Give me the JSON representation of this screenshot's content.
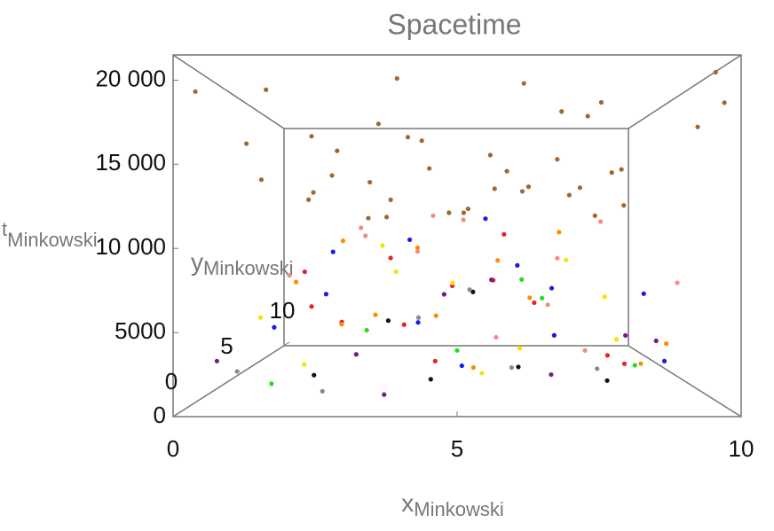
{
  "chart_data": {
    "type": "scatter3d",
    "title": "Spacetime",
    "xlabel": {
      "main": "x",
      "sub": "Minkowski"
    },
    "ylabel": {
      "main": "y",
      "sub": "Minkowski"
    },
    "tlabel": {
      "main": "t",
      "sub": "Minkowski"
    },
    "xlim": [
      0,
      10
    ],
    "ylim": [
      0,
      10
    ],
    "tlim": [
      0,
      21500
    ],
    "xticks": [
      0,
      5,
      10
    ],
    "yticks": [
      0,
      5,
      10
    ],
    "tticks": [
      0,
      5000,
      {
        "value": 10000,
        "label": "10 000"
      },
      {
        "value": 15000,
        "label": "15 000"
      },
      {
        "value": 20000,
        "label": "20 000"
      }
    ],
    "series": [
      {
        "color": "#a0672e",
        "x": [
          0.3,
          1.2,
          2.1,
          3.0,
          3.9,
          4.8,
          5.7,
          6.6,
          7.5,
          8.4,
          9.3,
          9.9,
          0.8,
          1.7,
          2.6,
          3.5,
          4.4,
          5.3,
          6.2,
          7.1,
          8.0,
          8.9,
          9.6,
          0.5,
          1.5,
          2.5,
          3.4,
          4.3,
          5.2,
          6.1,
          7.0,
          7.9,
          8.8,
          9.7,
          2.2,
          4.0,
          5.9,
          7.7,
          3.1,
          6.8
        ],
        "y": [
          0.5,
          8,
          3,
          6,
          1,
          9,
          4,
          7,
          2,
          5,
          8,
          1,
          3,
          6,
          9,
          2,
          5,
          8,
          0.5,
          4,
          7,
          9.5,
          2,
          6,
          1,
          4,
          7,
          3,
          9,
          5,
          2,
          8,
          6,
          0.8,
          5.5,
          3.5,
          6.5,
          1.5,
          9,
          7.5
        ],
        "t": [
          19500,
          14000,
          17500,
          15000,
          20500,
          13000,
          16500,
          14500,
          18500,
          15500,
          13500,
          19000,
          17000,
          14200,
          12500,
          18000,
          15800,
          13200,
          20000,
          16200,
          14800,
          12800,
          17800,
          15200,
          19800,
          16800,
          13800,
          17200,
          13000,
          15600,
          18800,
          14400,
          16000,
          20800,
          15400,
          17600,
          14600,
          19200,
          12600,
          15000
        ]
      },
      {
        "color": "#e8202a",
        "x": [
          2.1,
          3.4,
          4.6,
          5.8,
          7.0,
          8.2,
          1.5,
          3.9,
          6.3,
          7.7,
          4.9,
          2.8
        ],
        "y": [
          3,
          7,
          1,
          5,
          8,
          2,
          6,
          4,
          9,
          0.5,
          6.5,
          2
        ],
        "t": [
          6000,
          9000,
          3000,
          7500,
          5000,
          2500,
          8000,
          4500,
          11000,
          3500,
          6800,
          5200
        ]
      },
      {
        "color": "#1a1ae6",
        "x": [
          1.0,
          2.5,
          3.8,
          5.1,
          6.4,
          7.6,
          8.8,
          4.3,
          5.6,
          2.0,
          6.9,
          9.1
        ],
        "y": [
          5,
          2,
          8,
          3,
          6,
          9,
          1,
          0.5,
          4,
          7,
          2.5,
          5
        ],
        "t": [
          4000,
          7000,
          10500,
          2000,
          8500,
          6000,
          3000,
          5500,
          12000,
          9500,
          4200,
          6500
        ]
      },
      {
        "color": "#f2e600",
        "x": [
          0.9,
          2.2,
          3.6,
          4.9,
          6.2,
          7.4,
          8.6,
          5.5,
          3.1,
          7.9
        ],
        "y": [
          4,
          1,
          6,
          9,
          2,
          5,
          7,
          3,
          8,
          0.8
        ],
        "t": [
          5000,
          2800,
          8000,
          6500,
          3500,
          9000,
          5800,
          1500,
          10000,
          4400
        ]
      },
      {
        "color": "#ff8c00",
        "x": [
          1.3,
          2.7,
          4.0,
          5.3,
          6.6,
          7.8,
          9.0,
          3.3,
          6.0,
          8.3,
          4.6,
          2.0
        ],
        "y": [
          6,
          3,
          8,
          1,
          5,
          9,
          2,
          4,
          7,
          0.5,
          2,
          8.5
        ],
        "t": [
          7200,
          4800,
          9800,
          2600,
          6200,
          11200,
          3800,
          5200,
          8800,
          3000,
          5600,
          10400
        ]
      },
      {
        "color": "#f58a80",
        "x": [
          1.8,
          3.0,
          4.4,
          5.7,
          7.1,
          8.5,
          2.4,
          6.7,
          9.4,
          4.1,
          5.2,
          7.5
        ],
        "y": [
          2,
          5,
          8,
          0.5,
          4,
          7,
          9,
          1.5,
          3,
          6,
          9.5,
          2.5
        ],
        "t": [
          8200,
          10800,
          12600,
          4600,
          9200,
          12000,
          11600,
          6400,
          7600,
          9600,
          12400,
          3200
        ]
      },
      {
        "color": "#7a1a8c",
        "x": [
          0.6,
          2.9,
          4.7,
          6.8,
          8.7,
          3.7,
          5.9,
          9.6
        ],
        "y": [
          1,
          4,
          7,
          2,
          5,
          0.3,
          8,
          6
        ],
        "t": [
          3000,
          2400,
          6000,
          1800,
          3400,
          1200,
          7000,
          2600
        ]
      },
      {
        "color": "#111111",
        "x": [
          2.4,
          4.5,
          6.1,
          8.0,
          3.5,
          5.4
        ],
        "y": [
          0.8,
          2,
          0.5,
          3,
          5,
          7
        ],
        "t": [
          2200,
          1500,
          2800,
          1000,
          4500,
          6200
        ]
      },
      {
        "color": "#22dd22",
        "x": [
          1.6,
          3.2,
          5.0,
          6.5,
          8.4,
          7.2
        ],
        "y": [
          1,
          3,
          0.5,
          6,
          2,
          8
        ],
        "t": [
          1600,
          4400,
          3800,
          7400,
          2400,
          5400
        ]
      },
      {
        "color": "#8a8a8a",
        "x": [
          0.8,
          2.6,
          4.2,
          6.0,
          7.8,
          5.3
        ],
        "y": [
          2,
          0.3,
          4,
          1,
          3,
          6
        ],
        "t": [
          2000,
          1400,
          5000,
          2600,
          1800,
          6600
        ]
      }
    ]
  }
}
